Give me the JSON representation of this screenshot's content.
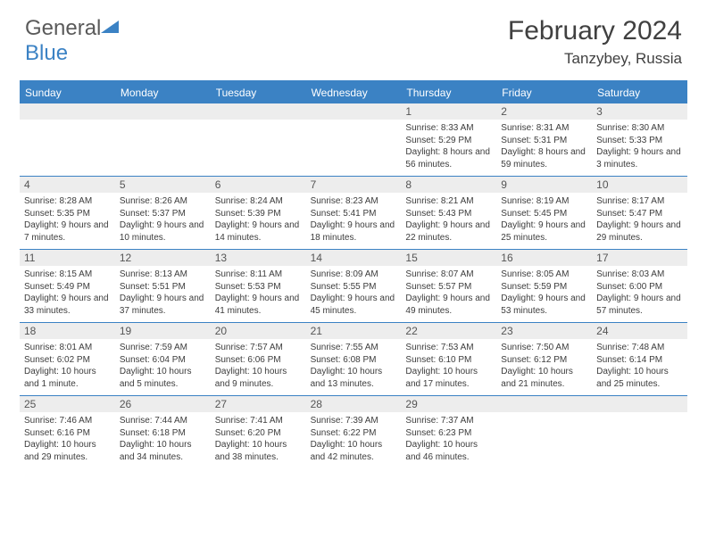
{
  "brand": {
    "part1": "General",
    "part2": "Blue"
  },
  "title": "February 2024",
  "location": "Tanzybey, Russia",
  "day_headers": [
    "Sunday",
    "Monday",
    "Tuesday",
    "Wednesday",
    "Thursday",
    "Friday",
    "Saturday"
  ],
  "colors": {
    "accent": "#3b82c4",
    "header_bg": "#3b82c4",
    "daynum_bg": "#ededed",
    "text": "#3c3c3c",
    "title_text": "#404040"
  },
  "weeks": [
    [
      null,
      null,
      null,
      null,
      {
        "n": "1",
        "sunrise": "8:33 AM",
        "sunset": "5:29 PM",
        "daylight": "8 hours and 56 minutes."
      },
      {
        "n": "2",
        "sunrise": "8:31 AM",
        "sunset": "5:31 PM",
        "daylight": "8 hours and 59 minutes."
      },
      {
        "n": "3",
        "sunrise": "8:30 AM",
        "sunset": "5:33 PM",
        "daylight": "9 hours and 3 minutes."
      }
    ],
    [
      {
        "n": "4",
        "sunrise": "8:28 AM",
        "sunset": "5:35 PM",
        "daylight": "9 hours and 7 minutes."
      },
      {
        "n": "5",
        "sunrise": "8:26 AM",
        "sunset": "5:37 PM",
        "daylight": "9 hours and 10 minutes."
      },
      {
        "n": "6",
        "sunrise": "8:24 AM",
        "sunset": "5:39 PM",
        "daylight": "9 hours and 14 minutes."
      },
      {
        "n": "7",
        "sunrise": "8:23 AM",
        "sunset": "5:41 PM",
        "daylight": "9 hours and 18 minutes."
      },
      {
        "n": "8",
        "sunrise": "8:21 AM",
        "sunset": "5:43 PM",
        "daylight": "9 hours and 22 minutes."
      },
      {
        "n": "9",
        "sunrise": "8:19 AM",
        "sunset": "5:45 PM",
        "daylight": "9 hours and 25 minutes."
      },
      {
        "n": "10",
        "sunrise": "8:17 AM",
        "sunset": "5:47 PM",
        "daylight": "9 hours and 29 minutes."
      }
    ],
    [
      {
        "n": "11",
        "sunrise": "8:15 AM",
        "sunset": "5:49 PM",
        "daylight": "9 hours and 33 minutes."
      },
      {
        "n": "12",
        "sunrise": "8:13 AM",
        "sunset": "5:51 PM",
        "daylight": "9 hours and 37 minutes."
      },
      {
        "n": "13",
        "sunrise": "8:11 AM",
        "sunset": "5:53 PM",
        "daylight": "9 hours and 41 minutes."
      },
      {
        "n": "14",
        "sunrise": "8:09 AM",
        "sunset": "5:55 PM",
        "daylight": "9 hours and 45 minutes."
      },
      {
        "n": "15",
        "sunrise": "8:07 AM",
        "sunset": "5:57 PM",
        "daylight": "9 hours and 49 minutes."
      },
      {
        "n": "16",
        "sunrise": "8:05 AM",
        "sunset": "5:59 PM",
        "daylight": "9 hours and 53 minutes."
      },
      {
        "n": "17",
        "sunrise": "8:03 AM",
        "sunset": "6:00 PM",
        "daylight": "9 hours and 57 minutes."
      }
    ],
    [
      {
        "n": "18",
        "sunrise": "8:01 AM",
        "sunset": "6:02 PM",
        "daylight": "10 hours and 1 minute."
      },
      {
        "n": "19",
        "sunrise": "7:59 AM",
        "sunset": "6:04 PM",
        "daylight": "10 hours and 5 minutes."
      },
      {
        "n": "20",
        "sunrise": "7:57 AM",
        "sunset": "6:06 PM",
        "daylight": "10 hours and 9 minutes."
      },
      {
        "n": "21",
        "sunrise": "7:55 AM",
        "sunset": "6:08 PM",
        "daylight": "10 hours and 13 minutes."
      },
      {
        "n": "22",
        "sunrise": "7:53 AM",
        "sunset": "6:10 PM",
        "daylight": "10 hours and 17 minutes."
      },
      {
        "n": "23",
        "sunrise": "7:50 AM",
        "sunset": "6:12 PM",
        "daylight": "10 hours and 21 minutes."
      },
      {
        "n": "24",
        "sunrise": "7:48 AM",
        "sunset": "6:14 PM",
        "daylight": "10 hours and 25 minutes."
      }
    ],
    [
      {
        "n": "25",
        "sunrise": "7:46 AM",
        "sunset": "6:16 PM",
        "daylight": "10 hours and 29 minutes."
      },
      {
        "n": "26",
        "sunrise": "7:44 AM",
        "sunset": "6:18 PM",
        "daylight": "10 hours and 34 minutes."
      },
      {
        "n": "27",
        "sunrise": "7:41 AM",
        "sunset": "6:20 PM",
        "daylight": "10 hours and 38 minutes."
      },
      {
        "n": "28",
        "sunrise": "7:39 AM",
        "sunset": "6:22 PM",
        "daylight": "10 hours and 42 minutes."
      },
      {
        "n": "29",
        "sunrise": "7:37 AM",
        "sunset": "6:23 PM",
        "daylight": "10 hours and 46 minutes."
      },
      null,
      null
    ]
  ],
  "labels": {
    "sunrise": "Sunrise: ",
    "sunset": "Sunset: ",
    "daylight": "Daylight: "
  }
}
